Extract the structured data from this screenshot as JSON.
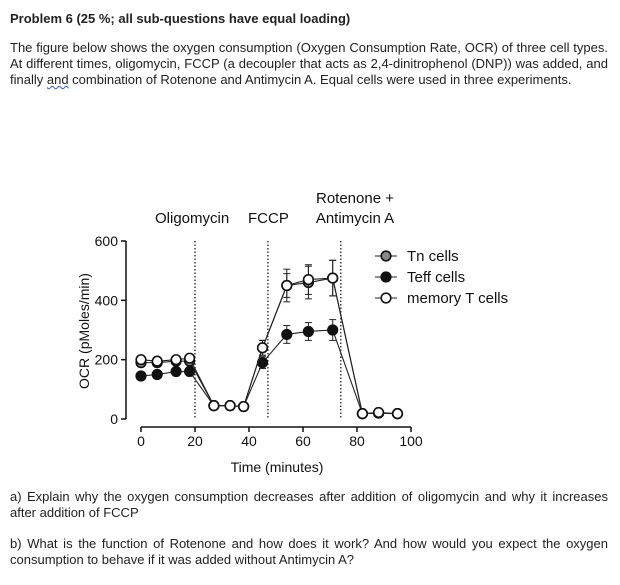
{
  "problem": {
    "title": "Problem 6 (25 %; all sub-questions have equal loading)",
    "intro_before": "The figure below shows the oxygen consumption (Oxygen Consumption Rate, OCR) of three cell types. At different times, oligomycin, FCCP (a decoupler that acts as 2,4-dinitrophenol (DNP)) was added, and finally ",
    "intro_and": "and",
    "intro_after": " combination of Rotenone and Antimycin A. Equal cells were used in three experiments.",
    "question_a": "a) Explain why the oxygen consumption decreases after addition of oligomycin and why it increases after addition of FCCP",
    "question_b": "b) What is the function of Rotenone and how does it work? And how would you expect the oxygen consumption to behave if it was added without Antimycin A?"
  },
  "chart_data": {
    "type": "line",
    "xlabel": "Time (minutes)",
    "ylabel": "OCR (pMoles/min)",
    "xlim": [
      0,
      100
    ],
    "ylim": [
      0,
      600
    ],
    "x_ticks": [
      0,
      20,
      40,
      60,
      80,
      100
    ],
    "y_ticks": [
      0,
      200,
      400,
      600
    ],
    "x_tick_labels": [
      "0",
      "20",
      "40",
      "60",
      "80",
      "100"
    ],
    "y_tick_labels": [
      "0",
      "200",
      "400",
      "600"
    ],
    "legend_position": "right",
    "annotations": [
      {
        "label": "Oligomycin",
        "x": 20
      },
      {
        "label": "FCCP",
        "x": 47
      },
      {
        "label": "Rotenone + Antimycin A",
        "x": 74
      }
    ],
    "x": [
      0,
      6,
      13,
      18,
      27,
      33,
      38,
      45,
      54,
      62,
      71,
      82,
      88,
      95
    ],
    "series": [
      {
        "name": "Tn cells",
        "fill": "#888888",
        "values": [
          190,
          190,
          195,
          195,
          45,
          45,
          42,
          240,
          450,
          460,
          475,
          18,
          20,
          18
        ],
        "errors": [
          10,
          8,
          8,
          8,
          5,
          5,
          5,
          25,
          55,
          55,
          60,
          5,
          5,
          5
        ]
      },
      {
        "name": "Teff cells",
        "fill": "#111111",
        "values": [
          145,
          150,
          160,
          160,
          45,
          45,
          42,
          190,
          285,
          295,
          300,
          18,
          20,
          18
        ],
        "errors": [
          10,
          8,
          8,
          8,
          5,
          5,
          5,
          20,
          30,
          30,
          35,
          5,
          5,
          5
        ]
      },
      {
        "name": "memory T cells",
        "fill": "#ffffff",
        "values": [
          200,
          195,
          200,
          205,
          45,
          45,
          42,
          240,
          450,
          470,
          475,
          18,
          22,
          18
        ],
        "errors": [
          10,
          8,
          8,
          8,
          5,
          5,
          5,
          25,
          40,
          50,
          60,
          5,
          5,
          5
        ]
      }
    ]
  }
}
